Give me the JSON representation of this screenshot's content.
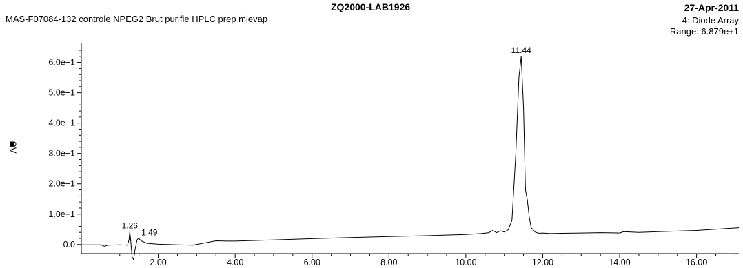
{
  "header": {
    "instrument": "ZQ2000-LAB1926",
    "date": "27-Apr-2011",
    "sample": "MAS-F07084-132 controle NPEG2 Brut purifie HPLC prep mievap",
    "detector": "4: Diode Array",
    "range": "Range: 6.879e+1"
  },
  "chart_data": {
    "type": "line",
    "ylabel": "AU",
    "xlabel": "",
    "xlim": [
      0.0,
      17.1
    ],
    "ylim": [
      -3.0,
      66.5
    ],
    "x_ticks": [
      2.0,
      4.0,
      6.0,
      8.0,
      10.0,
      12.0,
      14.0,
      16.0
    ],
    "x_tick_labels": [
      "2.00",
      "4.00",
      "6.00",
      "8.00",
      "10.00",
      "12.00",
      "14.00",
      "16.00"
    ],
    "y_ticks": [
      0,
      10,
      20,
      30,
      40,
      50,
      60
    ],
    "y_tick_labels": [
      "0.0",
      "1.0e+1",
      "2.0e+1",
      "3.0e+1",
      "4.0e+1",
      "5.0e+1",
      "6.0e+1"
    ],
    "series": [
      {
        "x": [
          0.0,
          0.5,
          0.6,
          0.7,
          1.0,
          1.2,
          1.24,
          1.26,
          1.28,
          1.32,
          1.36,
          1.4,
          1.45,
          1.49,
          1.55,
          1.7,
          2.0,
          2.5,
          2.9,
          3.2,
          3.5,
          3.8,
          4.0,
          5.0,
          6.0,
          7.0,
          8.0,
          9.0,
          10.0,
          10.4,
          10.6,
          10.7,
          10.8,
          10.9,
          11.0,
          11.1,
          11.2,
          11.3,
          11.38,
          11.44,
          11.5,
          11.55,
          11.6,
          11.65,
          11.7,
          11.8,
          11.9,
          12.0,
          12.2,
          12.5,
          13.0,
          13.5,
          14.0,
          14.1,
          14.5,
          15.0,
          16.0,
          17.1
        ],
        "y": [
          -0.1,
          -0.1,
          -0.6,
          -0.2,
          -0.1,
          -0.2,
          1.5,
          4.2,
          2.0,
          -4.0,
          -5.0,
          -1.5,
          1.5,
          2.1,
          1.2,
          0.4,
          0.1,
          -0.1,
          -0.2,
          0.5,
          1.2,
          1.1,
          1.1,
          1.5,
          1.9,
          2.3,
          2.6,
          2.9,
          3.3,
          3.6,
          3.9,
          4.6,
          3.9,
          4.5,
          4.1,
          4.8,
          8.0,
          30.0,
          55.0,
          62.0,
          45.0,
          18.0,
          14.5,
          9.0,
          5.5,
          4.1,
          3.7,
          3.8,
          3.6,
          3.7,
          3.8,
          3.9,
          3.8,
          4.2,
          4.0,
          4.2,
          4.6,
          5.5
        ]
      }
    ],
    "annotations": [
      {
        "x": 1.26,
        "y": 4.2,
        "text": "1.26"
      },
      {
        "x": 1.49,
        "y": 2.1,
        "text": "1.49"
      },
      {
        "x": 11.44,
        "y": 62.0,
        "text": "11.44"
      }
    ]
  }
}
